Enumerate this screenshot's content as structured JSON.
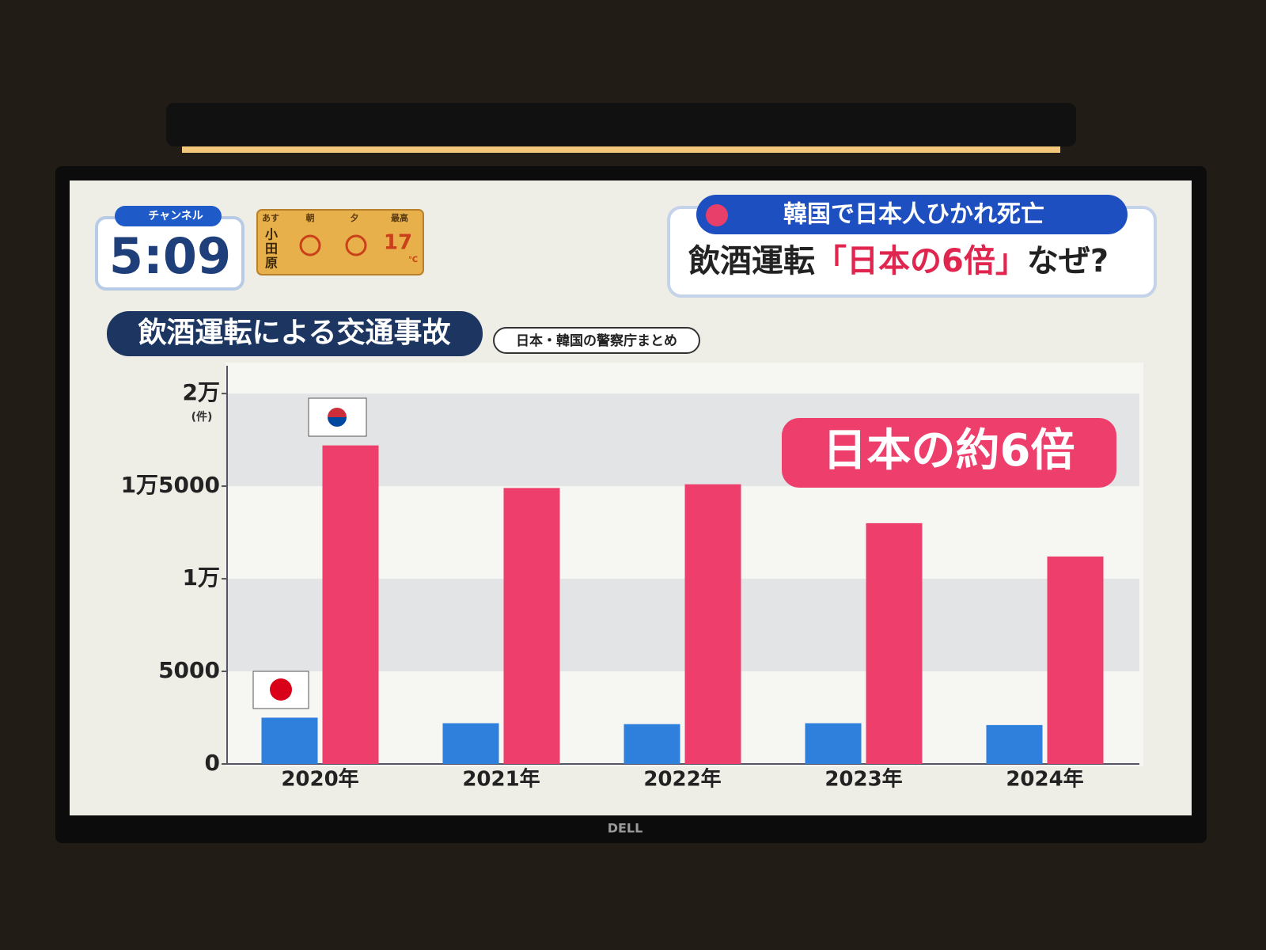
{
  "chart_data": {
    "type": "bar",
    "title": "飲酒運転による交通事故",
    "source": "日本・韓国の警察庁まとめ",
    "y_unit": "(件)",
    "annotation": "日本の約6倍",
    "categories": [
      "2020年",
      "2021年",
      "2022年",
      "2023年",
      "2024年"
    ],
    "series": [
      {
        "color": "#2f7fdc",
        "values": [
          2500,
          2200,
          2150,
          2200,
          2100
        ]
      },
      {
        "color": "#ee3f6c",
        "values": [
          17200,
          14900,
          15100,
          13000,
          11200
        ]
      }
    ],
    "ylim": [
      0,
      21500
    ],
    "yticks": [
      0,
      5000,
      {
        "value": 10000,
        "label": "1万"
      },
      {
        "value": 15000,
        "label": "1万5000"
      },
      {
        "value": 20000,
        "label": "2万"
      }
    ],
    "grid": true
  },
  "clock": {
    "channel": "チャンネル",
    "time": "5:09"
  },
  "weather": {
    "day": "あす",
    "morning": "朝",
    "evening": "夕",
    "high": "最高",
    "place": [
      "小",
      "田",
      "原"
    ],
    "temp": "17",
    "unit": "℃"
  },
  "headline": {
    "top": "韓国で日本人ひかれ死亡",
    "bottom": [
      "飲酒運転",
      "「日本の6倍」",
      "なぜ?"
    ]
  },
  "brand": "DELL"
}
